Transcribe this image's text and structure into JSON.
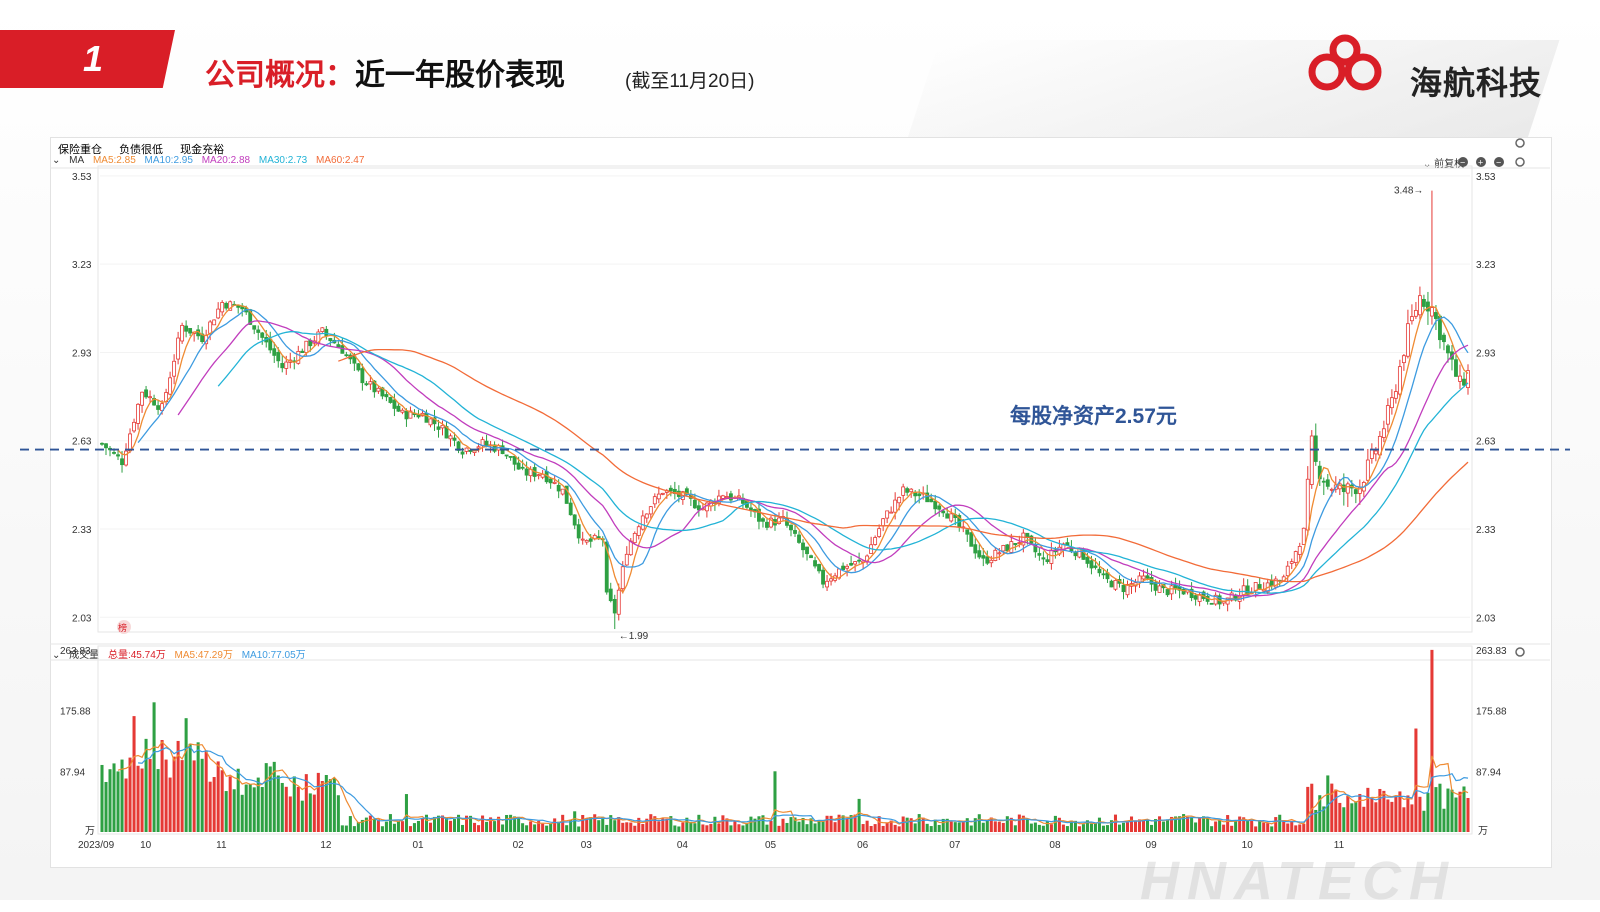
{
  "slide": {
    "number": "1",
    "title_red": "公司概况：",
    "title_black": "近一年股价表现",
    "subtitle": "(截至11月20日)",
    "company": "海航科技",
    "watermark": "HNATECH"
  },
  "tags": [
    {
      "label": "保险重仓",
      "color": "#d91e27"
    },
    {
      "label": "负债很低",
      "color": "#e06010"
    },
    {
      "label": "现金充裕",
      "color": "#d91e27"
    }
  ],
  "ma_strip": {
    "label": "MA",
    "items": [
      {
        "label": "MA5:2.85",
        "color": "#ef8b33"
      },
      {
        "label": "MA10:2.95",
        "color": "#3d9be0"
      },
      {
        "label": "MA20:2.88",
        "color": "#c13dbd"
      },
      {
        "label": "MA30:2.73",
        "color": "#22b3d6"
      },
      {
        "label": "MA60:2.47",
        "color": "#f26b38"
      }
    ]
  },
  "vol_strip": {
    "label": "成交量",
    "items": [
      {
        "label": "总量:45.74万",
        "color": "#d91e27"
      },
      {
        "label": "MA5:47.29万",
        "color": "#ef8b33"
      },
      {
        "label": "MA10:77.05万",
        "color": "#3d9be0"
      }
    ]
  },
  "controls": {
    "adjust": "前复权"
  },
  "annotation": {
    "text": "每股净资产2.57元",
    "value": 2.6,
    "color": "#2f5597"
  },
  "chart_data": [
    {
      "type": "candlestick",
      "name": "price",
      "ylim": [
        1.98,
        3.55
      ],
      "y_ticks": [
        "3.53",
        "3.23",
        "2.93",
        "2.63",
        "2.33",
        "2.03"
      ],
      "y_tick_values": [
        3.53,
        3.23,
        2.93,
        2.63,
        2.33,
        2.03
      ],
      "high_label": "3.48",
      "low_label": "1.99",
      "high_value": 3.48,
      "low_value": 1.99,
      "marker": "榜",
      "anchors": [
        [
          0,
          2.62
        ],
        [
          5,
          2.56
        ],
        [
          10,
          2.8
        ],
        [
          15,
          2.74
        ],
        [
          20,
          3.02
        ],
        [
          25,
          2.98
        ],
        [
          30,
          3.1
        ],
        [
          35,
          3.08
        ],
        [
          40,
          2.98
        ],
        [
          45,
          2.88
        ],
        [
          50,
          2.94
        ],
        [
          55,
          3.0
        ],
        [
          60,
          2.94
        ],
        [
          65,
          2.84
        ],
        [
          70,
          2.78
        ],
        [
          75,
          2.72
        ],
        [
          80,
          2.72
        ],
        [
          85,
          2.67
        ],
        [
          90,
          2.6
        ],
        [
          95,
          2.62
        ],
        [
          100,
          2.6
        ],
        [
          105,
          2.52
        ],
        [
          110,
          2.52
        ],
        [
          115,
          2.46
        ],
        [
          120,
          2.28
        ],
        [
          125,
          2.3
        ],
        [
          126,
          2.1
        ],
        [
          128,
          2.05
        ],
        [
          131,
          2.26
        ],
        [
          135,
          2.38
        ],
        [
          140,
          2.46
        ],
        [
          145,
          2.44
        ],
        [
          150,
          2.4
        ],
        [
          155,
          2.45
        ],
        [
          160,
          2.42
        ],
        [
          165,
          2.35
        ],
        [
          170,
          2.36
        ],
        [
          175,
          2.26
        ],
        [
          180,
          2.15
        ],
        [
          185,
          2.2
        ],
        [
          190,
          2.22
        ],
        [
          195,
          2.36
        ],
        [
          200,
          2.46
        ],
        [
          205,
          2.44
        ],
        [
          210,
          2.4
        ],
        [
          215,
          2.32
        ],
        [
          220,
          2.22
        ],
        [
          225,
          2.26
        ],
        [
          230,
          2.3
        ],
        [
          235,
          2.22
        ],
        [
          240,
          2.28
        ],
        [
          245,
          2.24
        ],
        [
          250,
          2.16
        ],
        [
          255,
          2.13
        ],
        [
          260,
          2.16
        ],
        [
          265,
          2.12
        ],
        [
          270,
          2.12
        ],
        [
          275,
          2.1
        ],
        [
          280,
          2.08
        ],
        [
          285,
          2.12
        ],
        [
          290,
          2.14
        ],
        [
          295,
          2.16
        ],
        [
          300,
          2.32
        ],
        [
          302,
          2.62
        ],
        [
          303,
          2.55
        ],
        [
          306,
          2.48
        ],
        [
          310,
          2.46
        ],
        [
          314,
          2.48
        ],
        [
          318,
          2.6
        ],
        [
          322,
          2.76
        ],
        [
          326,
          3.0
        ],
        [
          329,
          3.12
        ],
        [
          332,
          3.08
        ],
        [
          336,
          2.92
        ],
        [
          339,
          2.82
        ],
        [
          341,
          2.86
        ]
      ],
      "count": 342
    },
    {
      "type": "bar",
      "name": "volume",
      "ylim": [
        0,
        263.83
      ],
      "y_ticks": [
        "263.83",
        "175.88",
        "87.94"
      ],
      "y_tick_values": [
        263.83,
        175.88,
        87.94
      ],
      "unit": "万",
      "x_ticks": [
        "2023/09",
        "10",
        "11",
        "12",
        "01",
        "02",
        "03",
        "04",
        "05",
        "06",
        "07",
        "08",
        "09",
        "10",
        "11"
      ],
      "x_tick_index": [
        0,
        11,
        30,
        56,
        79,
        104,
        121,
        145,
        167,
        190,
        213,
        238,
        262,
        286,
        309
      ],
      "peaks": [
        [
          8,
          168
        ],
        [
          9,
          96
        ],
        [
          10,
          92
        ],
        [
          11,
          135
        ],
        [
          13,
          188
        ],
        [
          16,
          105
        ],
        [
          19,
          132
        ],
        [
          21,
          165
        ],
        [
          24,
          130
        ],
        [
          42,
          95
        ],
        [
          76,
          55
        ],
        [
          118,
          30
        ],
        [
          168,
          88
        ],
        [
          189,
          48
        ],
        [
          204,
          26
        ],
        [
          270,
          26
        ],
        [
          302,
          70
        ],
        [
          306,
          82
        ],
        [
          328,
          150
        ],
        [
          332,
          264
        ],
        [
          334,
          70
        ],
        [
          338,
          50
        ]
      ]
    }
  ]
}
